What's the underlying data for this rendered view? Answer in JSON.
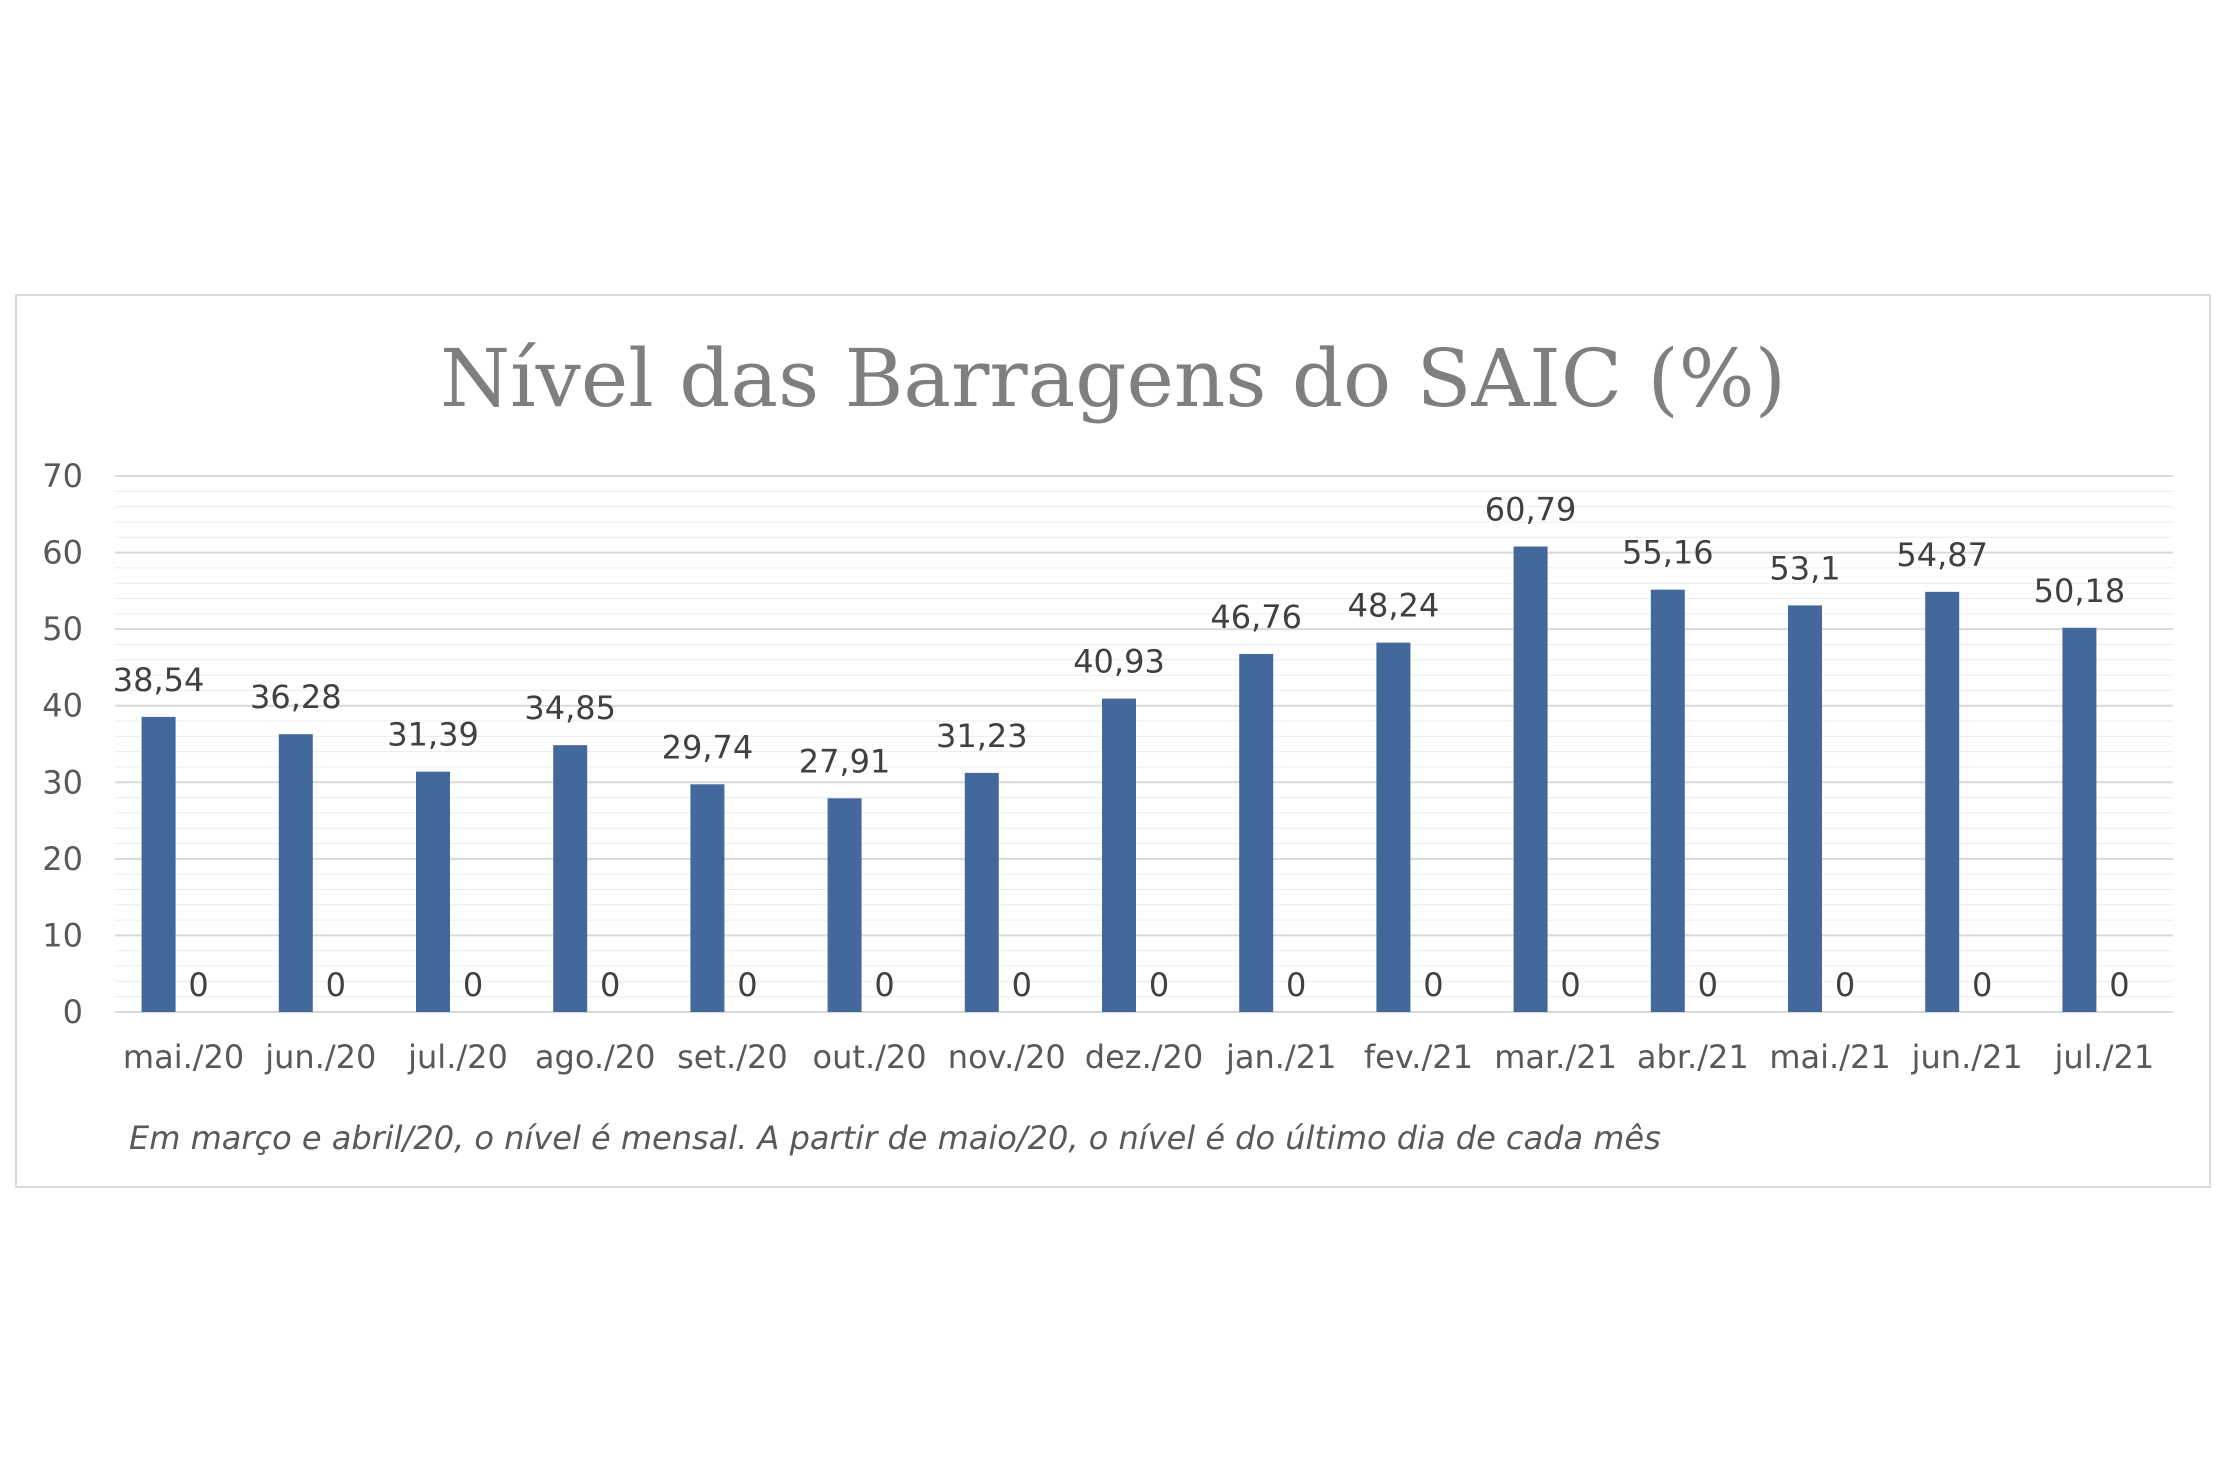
{
  "colors": {
    "bar": "#43699c",
    "grid_major": "#d9d9d9",
    "grid_minor": "#ececec",
    "title": "#7f7f7f"
  },
  "chart_data": {
    "type": "bar",
    "title": "Nível das Barragens do SAIC (%)",
    "xlabel": "",
    "ylabel": "",
    "ylim": [
      0,
      70
    ],
    "y_ticks": [
      "0",
      "10",
      "20",
      "30",
      "40",
      "50",
      "60",
      "70"
    ],
    "grid": true,
    "categories": [
      "mai./20",
      "jun./20",
      "jul./20",
      "ago./20",
      "set./20",
      "out./20",
      "nov./20",
      "dez./20",
      "jan./21",
      "fev./21",
      "mar./21",
      "abr./21",
      "mai./21",
      "jun./21",
      "jul./21"
    ],
    "series": [
      {
        "values": [
          38.54,
          36.28,
          31.39,
          34.85,
          29.74,
          27.91,
          31.23,
          40.93,
          46.76,
          48.24,
          60.79,
          55.16,
          53.1,
          54.87,
          50.18
        ],
        "labels": [
          "38,54",
          "36,28",
          "31,39",
          "34,85",
          "29,74",
          "27,91",
          "31,23",
          "40,93",
          "46,76",
          "48,24",
          "60,79",
          "55,16",
          "53,1",
          "54,87",
          "50,18"
        ]
      },
      {
        "values": [
          0,
          0,
          0,
          0,
          0,
          0,
          0,
          0,
          0,
          0,
          0,
          0,
          0,
          0,
          0
        ],
        "labels": [
          "0",
          "0",
          "0",
          "0",
          "0",
          "0",
          "0",
          "0",
          "0",
          "0",
          "0",
          "0",
          "0",
          "0",
          "0"
        ]
      }
    ],
    "footnote": "Em março e abril/20, o nível é mensal. A partir de maio/20, o nível é do último dia de cada mês"
  }
}
